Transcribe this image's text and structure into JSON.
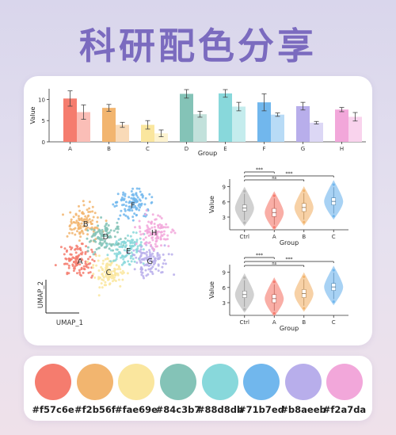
{
  "page": {
    "title": "科研配色分享"
  },
  "colors": [
    "#f57c6e",
    "#f2b56f",
    "#fae69e",
    "#84c3b7",
    "#88d8db",
    "#71b7ed",
    "#b8aeeb",
    "#f2a7da"
  ],
  "swatch_labels": [
    "#f57c6e",
    "#f2b56f",
    "#fae69e",
    "#84c3b7",
    "#88d8db",
    "#71b7ed",
    "#b8aeeb",
    "#f2a7da"
  ],
  "chart_data": [
    {
      "type": "bar",
      "categories": [
        "A",
        "B",
        "C",
        "D",
        "E",
        "F",
        "G",
        "H"
      ],
      "series": [
        {
          "values": [
            10.2,
            8.0,
            4.0,
            11.3,
            11.4,
            9.3,
            8.4,
            7.6
          ],
          "errors": [
            1.8,
            0.8,
            1.0,
            1.0,
            0.9,
            2.0,
            0.9,
            0.5
          ]
        },
        {
          "values": [
            7.0,
            4.0,
            2.0,
            6.5,
            8.3,
            6.4,
            4.5,
            5.9
          ],
          "errors": [
            1.7,
            0.6,
            0.8,
            0.7,
            1.0,
            0.4,
            0.3,
            1.0
          ]
        }
      ],
      "xlabel": "Group",
      "ylabel": "Value",
      "ylim": [
        0,
        12.5
      ],
      "yticks": [
        0,
        5,
        10
      ],
      "grid": false
    },
    {
      "type": "scatter",
      "clusters": [
        {
          "label": "A",
          "x": -3.0,
          "y": -1.6,
          "color": "#f57c6e"
        },
        {
          "label": "B",
          "x": -2.6,
          "y": 1.0,
          "color": "#f2b56f"
        },
        {
          "label": "C",
          "x": -1.0,
          "y": -2.4,
          "color": "#fae69e"
        },
        {
          "label": "D",
          "x": -1.2,
          "y": 0.1,
          "color": "#84c3b7"
        },
        {
          "label": "E",
          "x": 0.4,
          "y": -0.9,
          "color": "#88d8db"
        },
        {
          "label": "F",
          "x": 0.7,
          "y": 2.3,
          "color": "#71b7ed"
        },
        {
          "label": "G",
          "x": 1.9,
          "y": -1.6,
          "color": "#b8aeeb"
        },
        {
          "label": "H",
          "x": 2.2,
          "y": 0.4,
          "color": "#f2a7da"
        }
      ],
      "xlabel": "UMAP_1",
      "ylabel": "UMAP_2"
    },
    {
      "type": "violin",
      "categories": [
        "Ctrl",
        "A",
        "B",
        "C"
      ],
      "medians": [
        4.8,
        3.9,
        4.9,
        6.1
      ],
      "q1": [
        4.2,
        3.1,
        4.1,
        5.4
      ],
      "q3": [
        5.4,
        4.7,
        5.7,
        6.8
      ],
      "xlabel": "Group",
      "ylabel": "Value",
      "ylim": [
        0.5,
        10.5
      ],
      "yticks": [
        3,
        6,
        9
      ],
      "significance": [
        {
          "pair": [
            "Ctrl",
            "A"
          ],
          "label": "***"
        },
        {
          "pair": [
            "Ctrl",
            "B"
          ],
          "label": "ns"
        },
        {
          "pair": [
            "Ctrl",
            "C"
          ],
          "label": "***"
        }
      ]
    },
    {
      "type": "violin",
      "categories": [
        "Ctrl",
        "A",
        "B",
        "C"
      ],
      "medians": [
        4.6,
        3.8,
        4.8,
        6.1
      ],
      "q1": [
        4.0,
        3.0,
        4.0,
        5.4
      ],
      "q3": [
        5.3,
        4.6,
        5.6,
        6.8
      ],
      "xlabel": "Group",
      "ylabel": "Value",
      "ylim": [
        0.5,
        10.5
      ],
      "yticks": [
        3,
        6,
        9
      ],
      "significance": [
        {
          "pair": [
            "Ctrl",
            "A"
          ],
          "label": "***"
        },
        {
          "pair": [
            "Ctrl",
            "B"
          ],
          "label": "ns"
        },
        {
          "pair": [
            "Ctrl",
            "C"
          ],
          "label": "***"
        }
      ]
    }
  ]
}
